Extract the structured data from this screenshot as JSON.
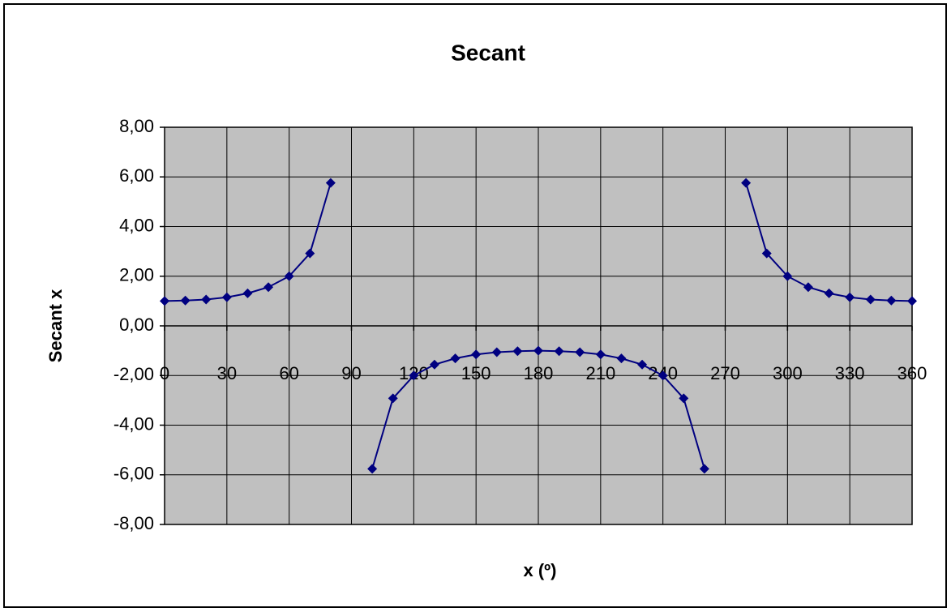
{
  "chart_data": {
    "type": "line",
    "title": "Secant",
    "x_label": "x (º)",
    "y_label": "Secant x",
    "x": [
      0,
      10,
      20,
      30,
      40,
      50,
      60,
      70,
      80,
      90,
      100,
      110,
      120,
      130,
      140,
      150,
      160,
      170,
      180,
      190,
      200,
      210,
      220,
      230,
      240,
      250,
      260,
      270,
      280,
      290,
      300,
      310,
      320,
      330,
      340,
      350,
      360
    ],
    "series": [
      {
        "name": "Secant x",
        "color": "#000080",
        "values": [
          1,
          1.02,
          1.06,
          1.15,
          1.31,
          1.56,
          2,
          2.92,
          5.76,
          null,
          -5.76,
          -2.92,
          -2,
          -1.56,
          -1.31,
          -1.15,
          -1.06,
          -1.02,
          -1,
          -1.02,
          -1.06,
          -1.15,
          -1.31,
          -1.56,
          -2,
          -2.92,
          -5.76,
          null,
          5.76,
          2.92,
          2,
          1.56,
          1.31,
          1.15,
          1.06,
          1.02,
          1
        ]
      }
    ],
    "xlim": [
      0,
      360
    ],
    "xticks": [
      0,
      30,
      60,
      90,
      120,
      150,
      180,
      210,
      240,
      270,
      300,
      330,
      360
    ],
    "ylim": [
      -8,
      8
    ],
    "yticks": [
      {
        "value": -8,
        "label": "-8,00"
      },
      {
        "value": -6,
        "label": "-6,00"
      },
      {
        "value": -4,
        "label": "-4,00"
      },
      {
        "value": -2,
        "label": "-2,00"
      },
      {
        "value": 0,
        "label": "0,00"
      },
      {
        "value": 2,
        "label": "2,00"
      },
      {
        "value": 4,
        "label": "4,00"
      },
      {
        "value": 6,
        "label": "6,00"
      },
      {
        "value": 8,
        "label": "8,00"
      }
    ],
    "grid": true,
    "plot_background": "#c0c0c0"
  }
}
